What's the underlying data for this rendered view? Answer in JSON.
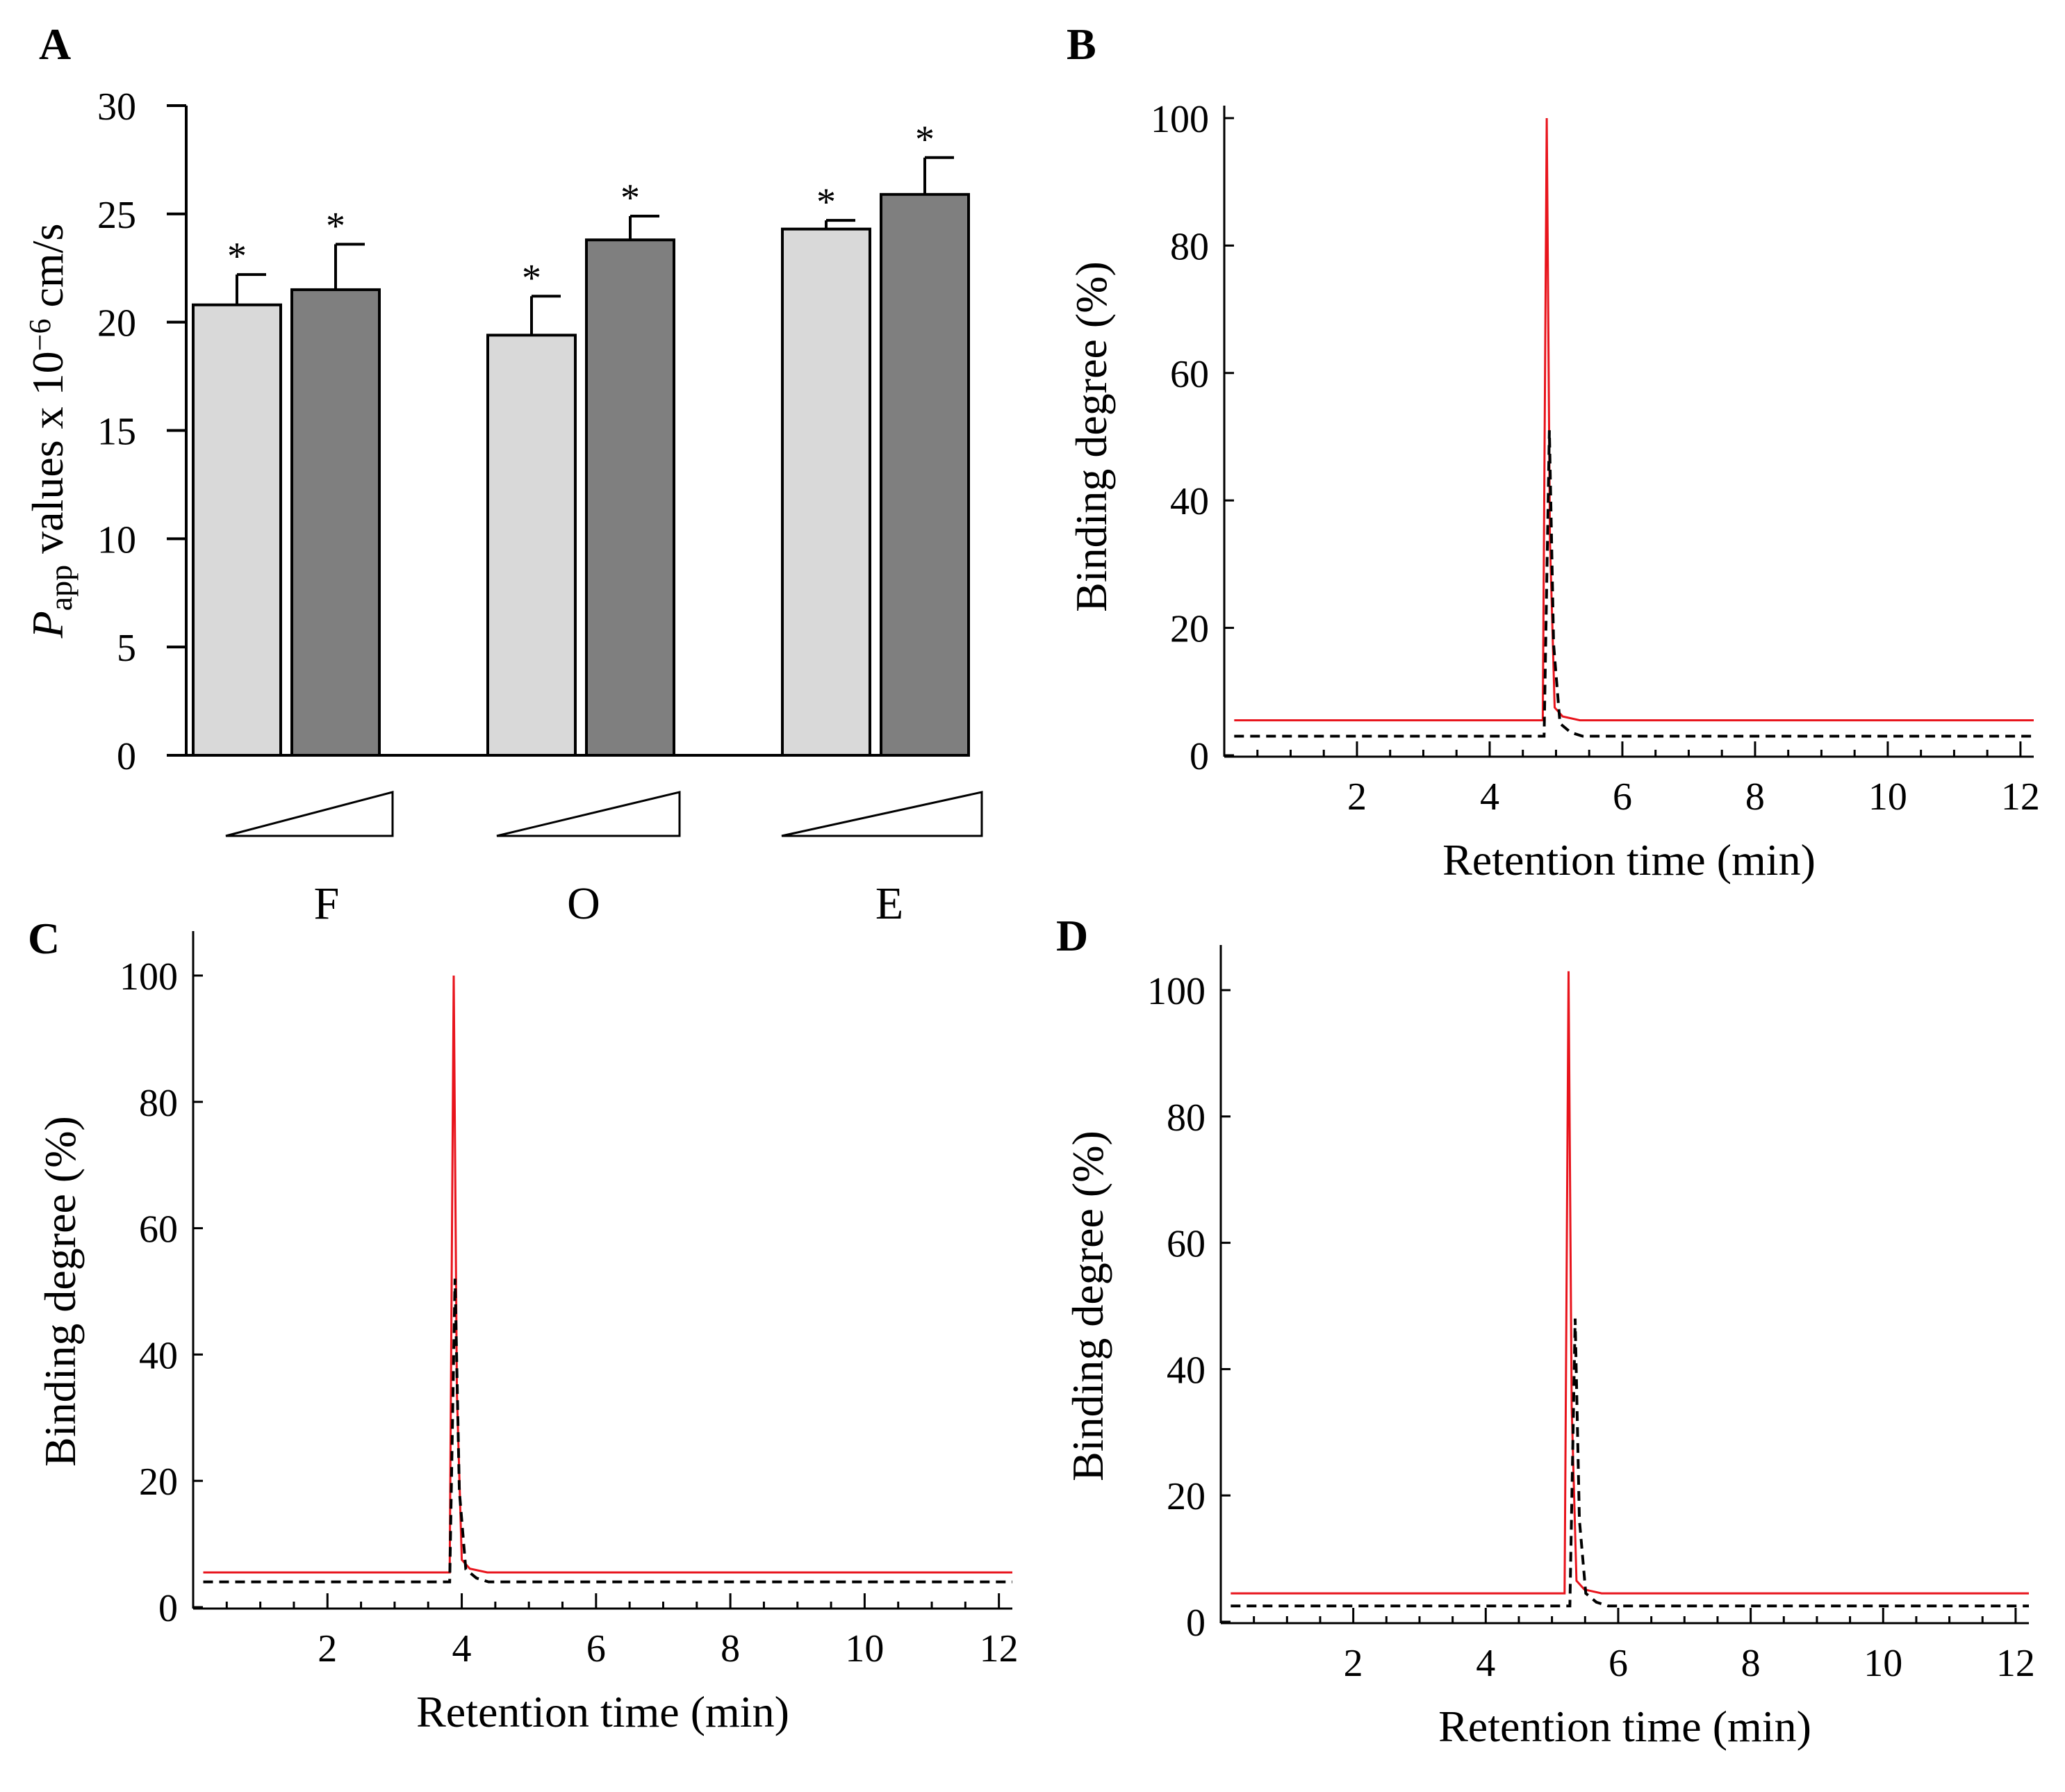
{
  "chart_data": [
    {
      "panel": "A",
      "type": "bar",
      "ylabel_main": "P",
      "ylabel_sub": "app",
      "ylabel_rest": " values x 10",
      "ylabel_exp": "−6",
      "ylabel_unit": " cm/s",
      "ylim": [
        0,
        30
      ],
      "yticks": [
        0,
        5,
        10,
        15,
        20,
        25,
        30
      ],
      "groups": [
        "F",
        "O",
        "E"
      ],
      "series": [
        {
          "color": "#d9d9d9",
          "values": [
            20.8,
            19.4,
            24.3
          ],
          "errors": [
            1.4,
            1.8,
            0.4
          ]
        },
        {
          "color": "#7f7f7f",
          "values": [
            21.5,
            23.8,
            25.9
          ],
          "errors": [
            2.1,
            1.1,
            1.7
          ]
        }
      ],
      "significance": [
        "*",
        "*",
        "*",
        "*",
        "*",
        "*"
      ],
      "concentration_wedges": true
    },
    {
      "panel": "B",
      "type": "line",
      "xlabel": "Retention time (min)",
      "ylabel": "Binding degree (%)",
      "xlim": [
        0,
        12.2
      ],
      "ylim": [
        0,
        100
      ],
      "xticks": [
        2,
        4,
        6,
        8,
        10,
        12
      ],
      "yticks": [
        0,
        20,
        40,
        60,
        80,
        100
      ],
      "series": [
        {
          "style": "solid",
          "color": "#e8141c",
          "baseline": 5.5,
          "peak_x": 4.86,
          "peak_y": 100
        },
        {
          "style": "dashed",
          "color": "#000000",
          "baseline": 3.0,
          "peak_x": 4.9,
          "peak_y": 51
        }
      ]
    },
    {
      "panel": "C",
      "type": "line",
      "xlabel": "Retention time (min)",
      "ylabel": "Binding degree (%)",
      "xlim": [
        0,
        12.2
      ],
      "ylim": [
        0,
        100
      ],
      "xticks": [
        2,
        4,
        6,
        8,
        10,
        12
      ],
      "yticks": [
        0,
        20,
        40,
        60,
        80,
        100
      ],
      "series": [
        {
          "style": "solid",
          "color": "#e8141c",
          "baseline": 5.5,
          "peak_x": 3.88,
          "peak_y": 100
        },
        {
          "style": "dashed",
          "color": "#000000",
          "baseline": 4.0,
          "peak_x": 3.9,
          "peak_y": 52
        }
      ]
    },
    {
      "panel": "D",
      "type": "line",
      "xlabel": "Retention time (min)",
      "ylabel": "Binding degree (%)",
      "xlim": [
        0,
        12.2
      ],
      "ylim": [
        0,
        100
      ],
      "xticks": [
        2,
        4,
        6,
        8,
        10,
        12
      ],
      "yticks": [
        0,
        20,
        40,
        60,
        80,
        100
      ],
      "series": [
        {
          "style": "solid",
          "color": "#e8141c",
          "baseline": 4.5,
          "peak_x": 5.25,
          "peak_y": 103
        },
        {
          "style": "dashed",
          "color": "#000000",
          "baseline": 2.5,
          "peak_x": 5.35,
          "peak_y": 48
        }
      ]
    }
  ]
}
